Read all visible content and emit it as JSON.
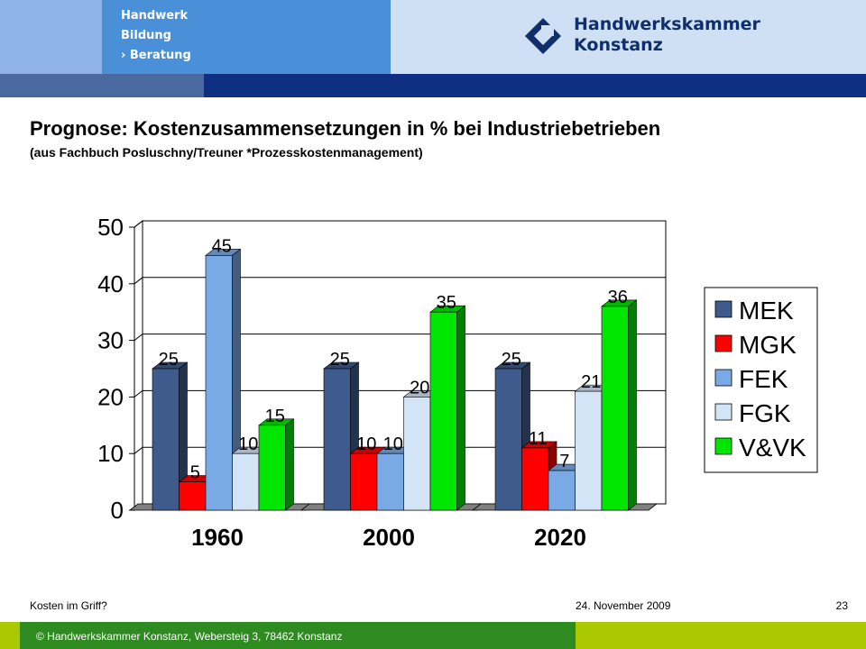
{
  "header": {
    "nav": [
      "Handwerk",
      "Bildung",
      "› Beratung"
    ],
    "org_line1": "Handwerkskammer",
    "org_line2": "Konstanz"
  },
  "title": "Prognose: Kostenzusammensetzungen in % bei Industriebetrieben",
  "subtitle": "(aus Fachbuch Posluschny/Treuner *Prozesskostenmanagement)",
  "chart_data": {
    "type": "bar",
    "title": "",
    "xlabel": "",
    "ylabel": "",
    "categories": [
      "1960",
      "2000",
      "2020"
    ],
    "ylim": [
      0,
      50
    ],
    "yticks": [
      0,
      10,
      20,
      30,
      40,
      50
    ],
    "grid": true,
    "legend_position": "right",
    "series": [
      {
        "name": "MEK",
        "color": "#3f5a8c",
        "values": [
          25,
          25,
          25
        ]
      },
      {
        "name": "MGK",
        "color": "#ff0000",
        "values": [
          5,
          10,
          11
        ]
      },
      {
        "name": "FEK",
        "color": "#7aaae6",
        "values": [
          45,
          10,
          7
        ]
      },
      {
        "name": "FGK",
        "color": "#d4e4f7",
        "values": [
          10,
          20,
          21
        ]
      },
      {
        "name": "V&VK",
        "color": "#00e600",
        "values": [
          15,
          35,
          36
        ]
      }
    ]
  },
  "footer": {
    "left": "Kosten im Griff?",
    "date": "24. November 2009",
    "page": "23",
    "copyright": "© Handwerkskammer Konstanz, Webersteig 3, 78462 Konstanz"
  }
}
